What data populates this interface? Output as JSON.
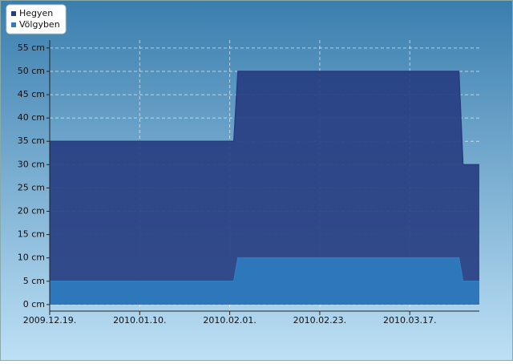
{
  "chart_data": {
    "type": "area",
    "x": [
      "2009-12-19",
      "2010-02-02",
      "2010-02-03",
      "2010-03-29",
      "2010-03-30",
      "2010-04-03"
    ],
    "series": [
      {
        "name": "Hegyen",
        "color": "#263c80",
        "values": [
          35,
          35,
          50,
          50,
          30,
          30
        ]
      },
      {
        "name": "Völgyben",
        "color": "#2f7cc0",
        "values": [
          5,
          5,
          10,
          10,
          5,
          5
        ]
      }
    ],
    "xlim": [
      "2009-12-19",
      "2010-04-03"
    ],
    "xticks": [
      {
        "value": "2009-12-19",
        "label": "2009.12.19."
      },
      {
        "value": "2010-01-10",
        "label": "2010.01.10."
      },
      {
        "value": "2010-02-01",
        "label": "2010.02.01."
      },
      {
        "value": "2010-02-23",
        "label": "2010.02.23."
      },
      {
        "value": "2010-03-17",
        "label": "2010.03.17."
      }
    ],
    "ylim": [
      -1.4,
      56.7
    ],
    "yticks": [
      {
        "value": 0,
        "label": "0 cm"
      },
      {
        "value": 5,
        "label": "5 cm"
      },
      {
        "value": 10,
        "label": "10 cm"
      },
      {
        "value": 15,
        "label": "15 cm"
      },
      {
        "value": 20,
        "label": "20 cm"
      },
      {
        "value": 25,
        "label": "25 cm"
      },
      {
        "value": 30,
        "label": "30 cm"
      },
      {
        "value": 35,
        "label": "35 cm"
      },
      {
        "value": 40,
        "label": "40 cm"
      },
      {
        "value": 45,
        "label": "45 cm"
      },
      {
        "value": 50,
        "label": "50 cm"
      },
      {
        "value": 55,
        "label": "55 cm"
      }
    ],
    "grid": true,
    "legend": "top-left"
  }
}
